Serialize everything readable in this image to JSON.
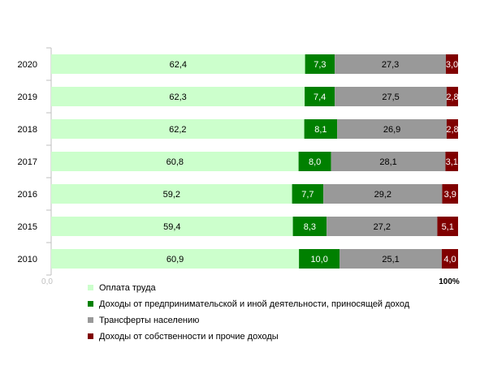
{
  "chart_data": {
    "type": "bar",
    "orientation": "horizontal",
    "stacked": true,
    "normalized": true,
    "categories": [
      "2020",
      "2019",
      "2018",
      "2017",
      "2016",
      "2015",
      "2010"
    ],
    "series": [
      {
        "name": "Оплата труда",
        "color": "#ccffcc",
        "values": [
          62.4,
          62.3,
          62.2,
          60.8,
          59.2,
          59.4,
          60.9
        ],
        "labels": [
          "62,4",
          "62,3",
          "62,2",
          "60,8",
          "59,2",
          "59,4",
          "60,9"
        ]
      },
      {
        "name": "Доходы от предпринимательской и иной деятельности, приносящей доход",
        "color": "#008000",
        "values": [
          7.3,
          7.4,
          8.1,
          8.0,
          7.7,
          8.3,
          10.0
        ],
        "labels": [
          "7,3",
          "7,4",
          "8,1",
          "8,0",
          "7,7",
          "8,3",
          "10,0"
        ]
      },
      {
        "name": "Трансферты населению",
        "color": "#999999",
        "values": [
          27.3,
          27.5,
          26.9,
          28.1,
          29.2,
          27.2,
          25.1
        ],
        "labels": [
          "27,3",
          "27,5",
          "26,9",
          "28,1",
          "29,2",
          "27,2",
          "25,1"
        ]
      },
      {
        "name": "Доходы от собственности и прочие доходы",
        "color": "#800000",
        "values": [
          3.0,
          2.8,
          2.8,
          3.1,
          3.9,
          5.1,
          4.0
        ],
        "labels": [
          "3,0",
          "2,8",
          "2,8",
          "3,1",
          "3,9",
          "5,1",
          "4,0"
        ]
      }
    ],
    "x_tick_labels": [
      "0,0",
      "100%"
    ],
    "xlim": [
      0,
      100
    ],
    "legend_position": "bottom",
    "grid": false
  }
}
